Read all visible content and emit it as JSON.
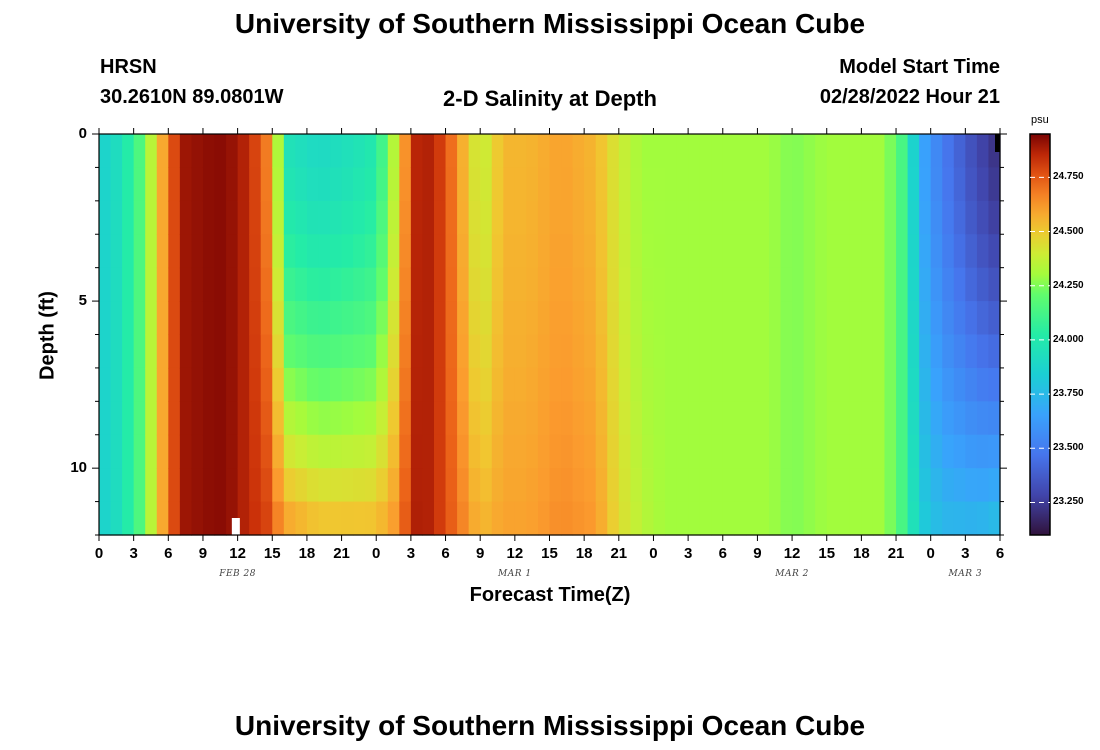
{
  "page": {
    "title": "University of Southern Mississippi Ocean Cube",
    "title_repeat": "University of Southern Mississippi Ocean Cube",
    "station": "HRSN",
    "coords": "30.2610N  89.0801W",
    "plot_title": "2-D Salinity at Depth",
    "model_start_label": "Model Start Time",
    "model_start_value": "02/28/2022 Hour 21"
  },
  "chart_data": {
    "type": "heatmap",
    "title": "2-D Salinity at Depth",
    "xlabel": "Forecast Time(Z)",
    "ylabel": "Depth (ft)",
    "colorbar_label": "psu",
    "x_tick_labels": [
      "0",
      "3",
      "6",
      "9",
      "12",
      "15",
      "18",
      "21",
      "0",
      "3",
      "6",
      "9",
      "12",
      "15",
      "18",
      "21",
      "0",
      "3",
      "6",
      "9",
      "12",
      "15",
      "18",
      "21",
      "0",
      "3",
      "6"
    ],
    "x_date_labels": [
      {
        "label": "FEB 28",
        "hour": 12
      },
      {
        "label": "MAR 1",
        "hour": 36
      },
      {
        "label": "MAR 2",
        "hour": 60
      },
      {
        "label": "MAR 3",
        "hour": 75
      }
    ],
    "xlim_hours": [
      0,
      78
    ],
    "y_ticks": [
      0,
      5,
      10
    ],
    "ylim_ft": [
      0,
      12
    ],
    "y_reversed": true,
    "colorbar_ticks": [
      "24.750",
      "24.500",
      "24.250",
      "24.000",
      "23.750",
      "23.500",
      "23.250"
    ],
    "color_range": [
      23.1,
      24.95
    ],
    "colormap": "turbo",
    "column_hours": [
      0,
      2,
      3.5,
      5,
      6,
      7.5,
      9,
      11,
      13,
      14.5,
      15.3,
      16.5,
      19,
      22,
      24,
      26,
      27,
      28,
      30,
      33,
      35,
      37,
      40,
      43,
      45,
      47,
      49,
      52,
      55,
      58,
      60,
      63,
      66,
      68,
      69.8,
      71,
      73,
      76,
      78
    ],
    "salinity_surface": [
      23.85,
      23.95,
      24.15,
      24.45,
      24.72,
      24.9,
      24.92,
      24.93,
      24.85,
      24.68,
      24.4,
      23.95,
      23.9,
      23.95,
      24.0,
      24.45,
      24.82,
      24.9,
      24.78,
      24.35,
      24.55,
      24.55,
      24.6,
      24.55,
      24.4,
      24.3,
      24.3,
      24.3,
      24.3,
      24.3,
      24.25,
      24.3,
      24.3,
      24.3,
      24.1,
      23.7,
      23.5,
      23.3,
      23.2
    ],
    "salinity_bottom": [
      23.85,
      23.95,
      24.15,
      24.45,
      24.72,
      24.9,
      24.92,
      24.93,
      24.85,
      24.8,
      24.7,
      24.62,
      24.55,
      24.55,
      24.55,
      24.65,
      24.85,
      24.9,
      24.78,
      24.55,
      24.6,
      24.6,
      24.65,
      24.62,
      24.45,
      24.35,
      24.3,
      24.3,
      24.3,
      24.3,
      24.25,
      24.3,
      24.3,
      24.3,
      24.1,
      23.85,
      23.75,
      23.75,
      23.8
    ],
    "colors": {
      "frame": "#000000",
      "marker_white": "#ffffff",
      "marker_black": "#000000"
    }
  }
}
